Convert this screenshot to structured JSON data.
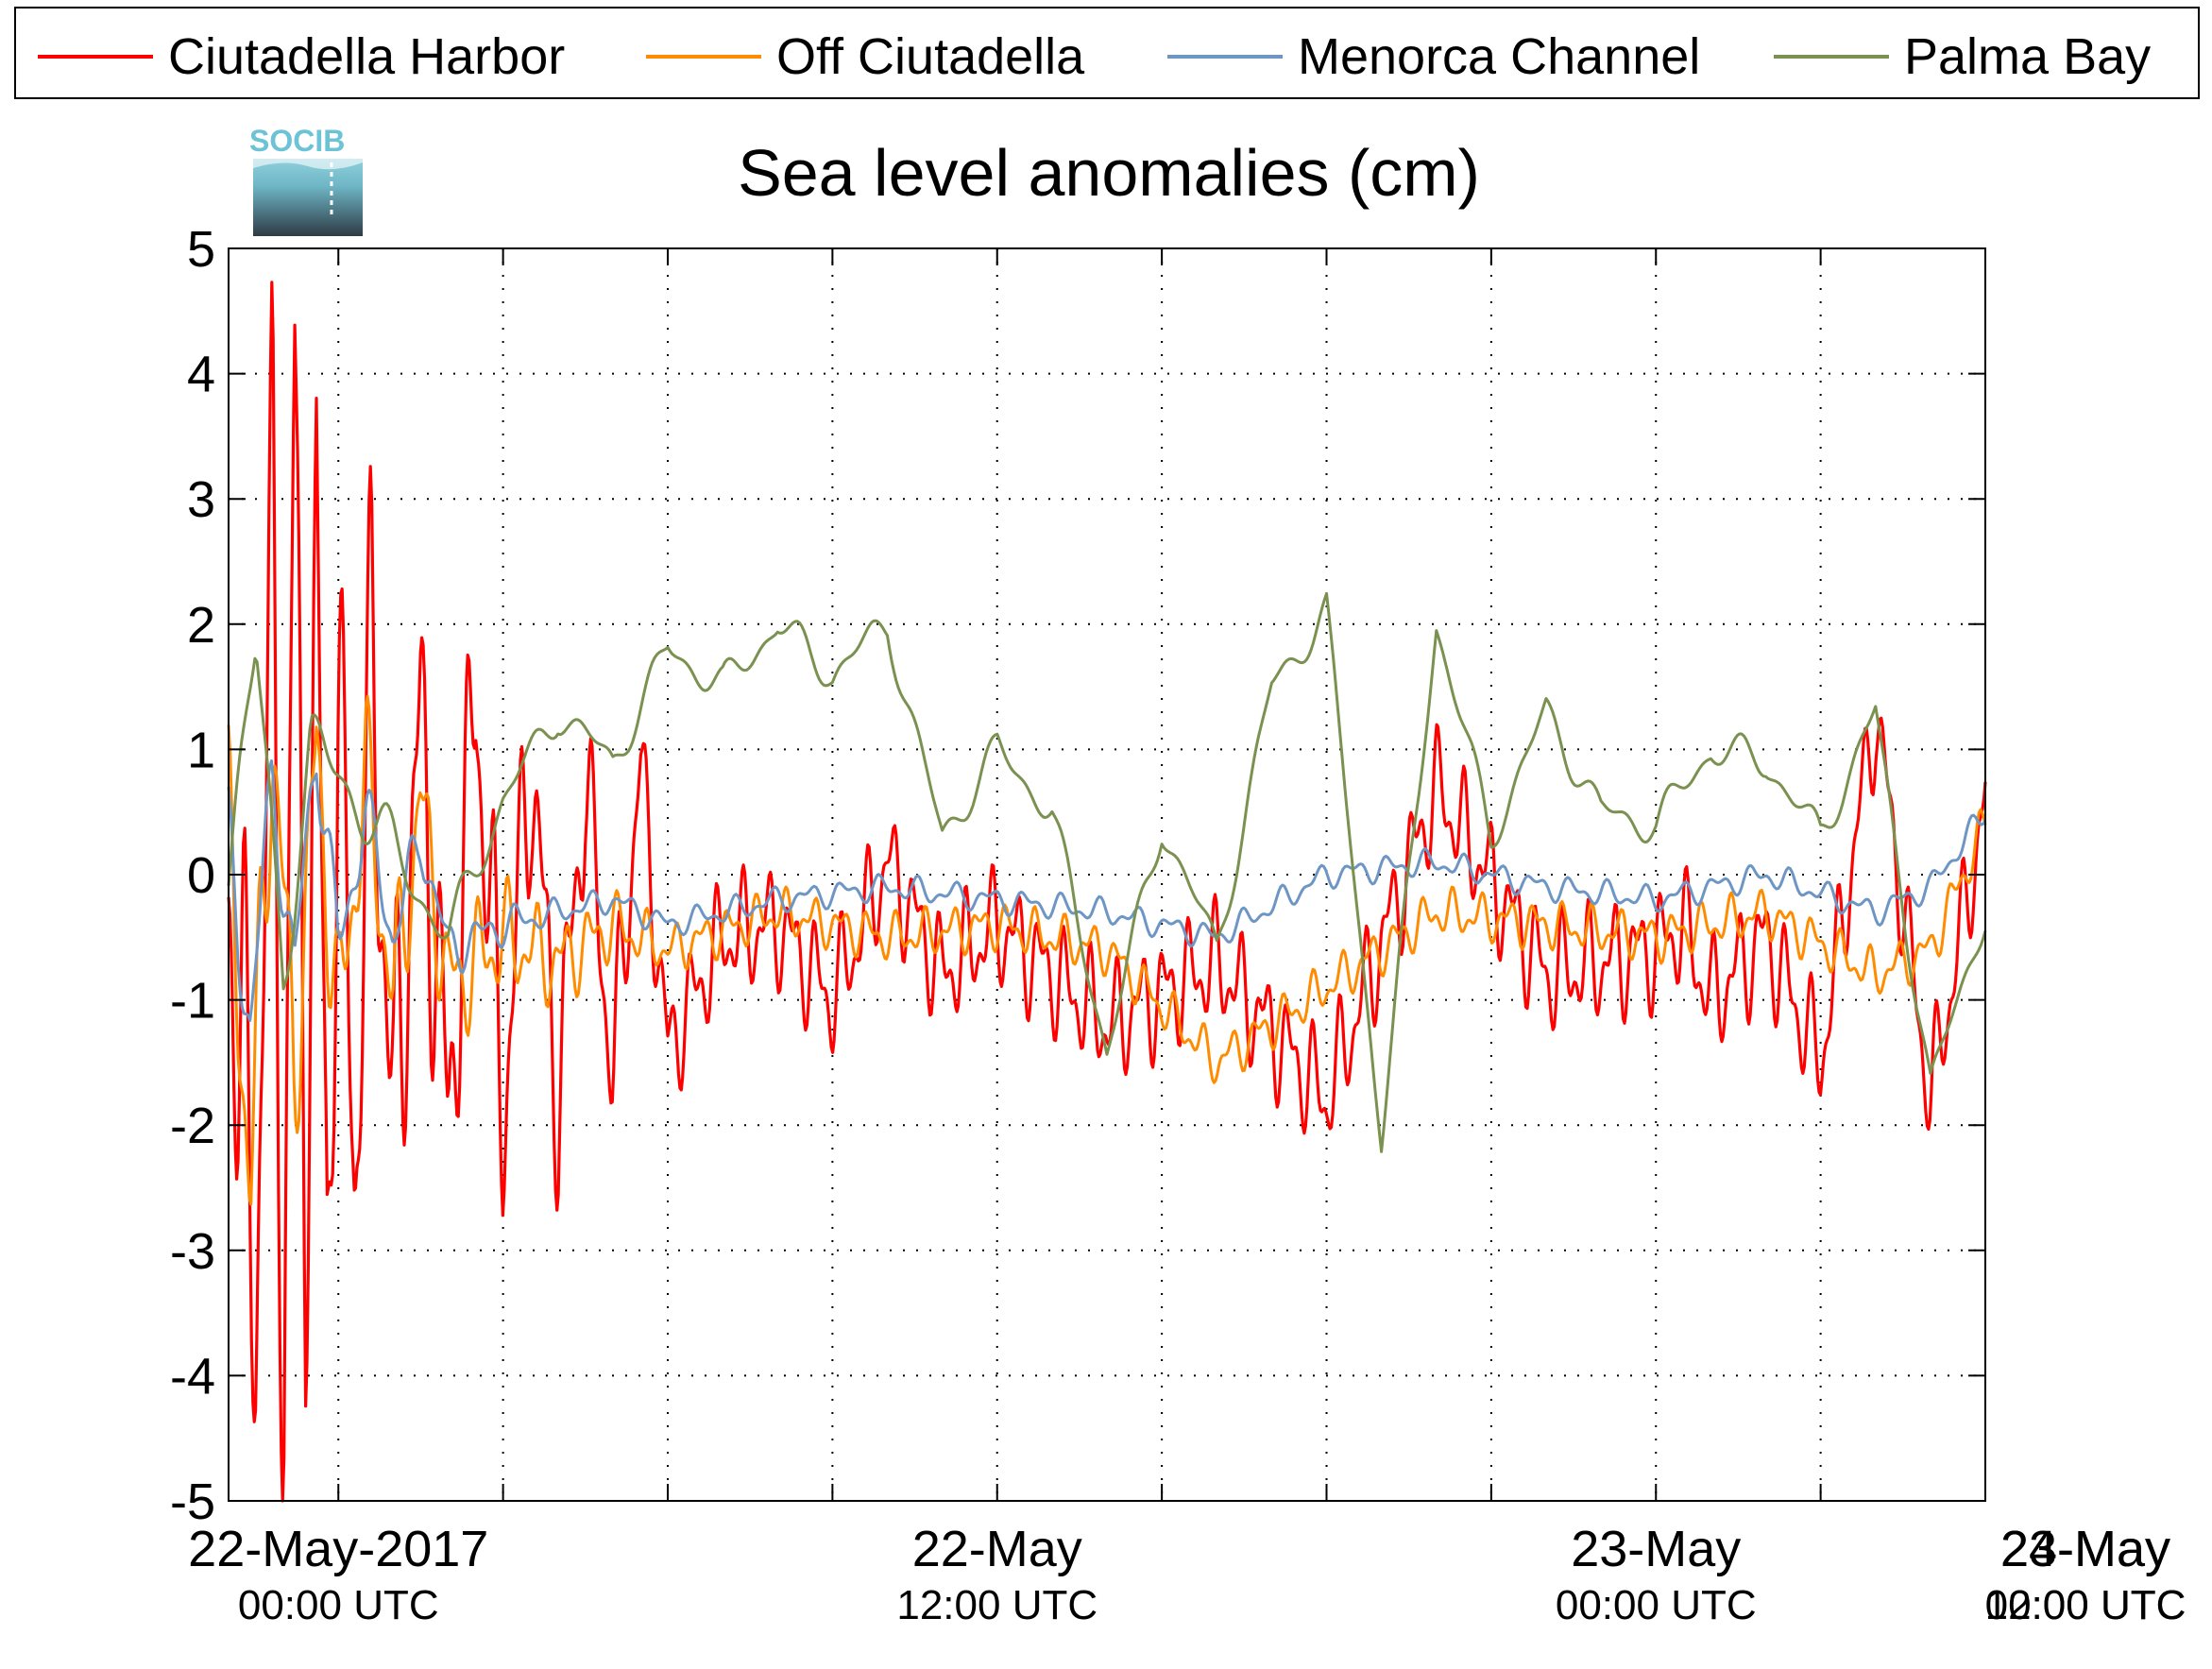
{
  "logo": {
    "text": "SOCIB"
  },
  "chart_data": {
    "type": "line",
    "title": "Sea level anomalies (cm)",
    "xlabel": "",
    "ylabel": "",
    "ylim": [
      -5,
      5
    ],
    "yticks": [
      5,
      4,
      3,
      2,
      1,
      0,
      -1,
      -2,
      -3,
      -4,
      -5
    ],
    "xlim_hours": [
      -2,
      30
    ],
    "xticks": [
      {
        "hours": 0,
        "line1": "22-May-2017",
        "line2": "00:00 UTC"
      },
      {
        "hours": 12,
        "line1": "22-May",
        "line2": "12:00 UTC"
      },
      {
        "hours": 24,
        "line1": "23-May",
        "line2": "00:00 UTC"
      },
      {
        "hours": 36,
        "line1": "23-May",
        "line2": "12:00 UTC"
      },
      {
        "hours": 48,
        "line1": "24-May",
        "line2": "00:00 UTC"
      }
    ],
    "minor_tick_step_hours": 3,
    "x_start_hours": -2,
    "x_end_hours": 30,
    "grid": true,
    "legend_position": "top",
    "series": [
      {
        "name": "Ciutadella Harbor",
        "color": "#ff0000",
        "x": [
          -2,
          -1.5,
          -1.2,
          -1,
          -0.8,
          -0.6,
          -0.4,
          -0.2,
          0,
          0.3,
          0.6,
          1,
          1.5,
          2,
          2.5,
          3,
          3.5,
          4,
          4.5,
          5,
          5.5,
          6,
          7,
          8,
          9,
          10,
          11,
          12,
          14,
          16,
          18,
          20,
          22,
          24,
          24.5,
          25,
          26,
          27,
          28,
          29,
          30
        ],
        "y": [
          0.1,
          -3.3,
          3.0,
          -4.25,
          4.0,
          -2.6,
          2.6,
          -3.0,
          1.5,
          -2.4,
          1.8,
          -2.0,
          1.2,
          -2.0,
          1.5,
          -1.9,
          1.0,
          -1.8,
          0.8,
          -1.6,
          0.9,
          -1.4,
          -0.5,
          -0.4,
          -1.0,
          0.1,
          -0.8,
          -0.4,
          -1.2,
          -0.7,
          -1.8,
          0.7,
          -0.8,
          -0.6,
          -0.4,
          -1.0,
          -0.5,
          -1.5,
          1.3,
          -1.8,
          0.6
        ]
      },
      {
        "name": "Off Ciutadella",
        "color": "#ff8c00",
        "x": [
          -2,
          -1.6,
          -1.2,
          -0.8,
          -0.4,
          0,
          0.5,
          1,
          1.5,
          2,
          3,
          4,
          5,
          6,
          8,
          10,
          12,
          14,
          16,
          18,
          20,
          22,
          24,
          26,
          28,
          29,
          30
        ],
        "y": [
          0.2,
          -2.4,
          1.2,
          -1.6,
          1.0,
          -1.2,
          0.8,
          -1.0,
          0.6,
          -0.9,
          -0.5,
          -0.7,
          -0.4,
          -0.6,
          -0.3,
          -0.5,
          -0.4,
          -0.6,
          -1.5,
          -0.9,
          -0.3,
          -0.4,
          -0.5,
          -0.3,
          -0.8,
          -0.6,
          0.4
        ]
      },
      {
        "name": "Menorca Channel",
        "color": "#6e96c4",
        "x": [
          -2,
          -1.6,
          -1.2,
          -0.8,
          -0.4,
          0,
          0.5,
          1,
          1.5,
          2,
          3,
          4,
          5,
          6,
          8,
          10,
          12,
          14,
          16,
          18,
          20,
          22,
          24,
          26,
          28,
          29,
          30
        ],
        "y": [
          0.2,
          -1.2,
          0.8,
          -0.8,
          1.1,
          -0.6,
          0.5,
          -0.5,
          0.3,
          -0.6,
          -0.4,
          -0.3,
          -0.2,
          -0.4,
          -0.2,
          -0.1,
          -0.2,
          -0.3,
          -0.5,
          0.0,
          0.1,
          -0.1,
          -0.2,
          0.0,
          -0.3,
          -0.1,
          0.5
        ]
      },
      {
        "name": "Palma Bay",
        "color": "#7a9150",
        "x": [
          -2,
          -1.5,
          -1,
          -0.5,
          0,
          1,
          2,
          3,
          4,
          5,
          6,
          7,
          8,
          9,
          10,
          11,
          12,
          13,
          14,
          15,
          16,
          17,
          18,
          19,
          20,
          21,
          22,
          23,
          24,
          25,
          26,
          27,
          28,
          29,
          30
        ],
        "y": [
          0.1,
          1.7,
          -0.7,
          1.0,
          0.8,
          0.2,
          -0.5,
          0.6,
          1.3,
          0.9,
          1.8,
          1.5,
          2.0,
          1.6,
          2.0,
          0.3,
          1.0,
          0.5,
          -1.4,
          0.4,
          -0.6,
          1.5,
          2.1,
          -2.1,
          2.0,
          0.3,
          1.3,
          0.5,
          0.4,
          1.0,
          0.9,
          0.3,
          1.3,
          -1.7,
          -0.3
        ]
      }
    ]
  }
}
